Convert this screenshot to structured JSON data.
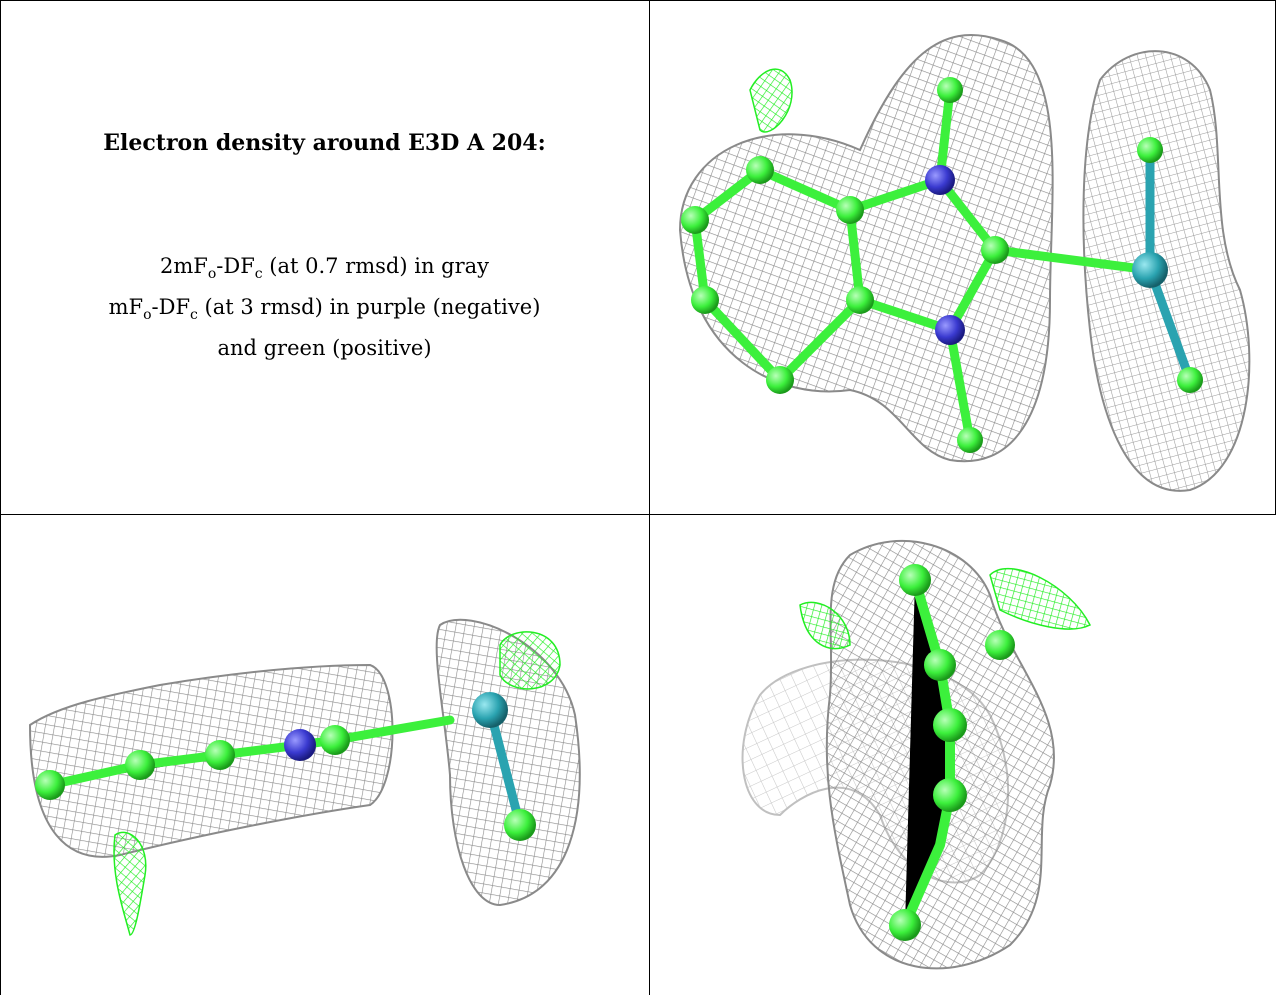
{
  "caption": {
    "title": "Electron density around E3D A 204:",
    "line1": {
      "prefix": "2mF",
      "sub_o": "o",
      "mid": "-DF",
      "sub_c": "c",
      "suffix": " (at 0.7 rmsd) in gray"
    },
    "line2": {
      "prefix": "mF",
      "sub_o": "o",
      "mid": "-DF",
      "sub_c": "c",
      "suffix": " (at 3 rmsd) in purple (negative)"
    },
    "line3": "and green (positive)"
  },
  "colors": {
    "mesh_gray": "#8a8a8a",
    "positive_green": "#22ee22",
    "negative_purple": "#c020c0",
    "carbon": "#3cf03c",
    "nitrogen": "#3a3ad0",
    "heavy_atom": "#2aa3b0"
  },
  "panels": [
    {
      "name": "density-view-top",
      "icon": "molecule-mesh-icon"
    },
    {
      "name": "density-view-side",
      "icon": "molecule-mesh-icon"
    },
    {
      "name": "density-view-end",
      "icon": "molecule-mesh-icon"
    }
  ]
}
